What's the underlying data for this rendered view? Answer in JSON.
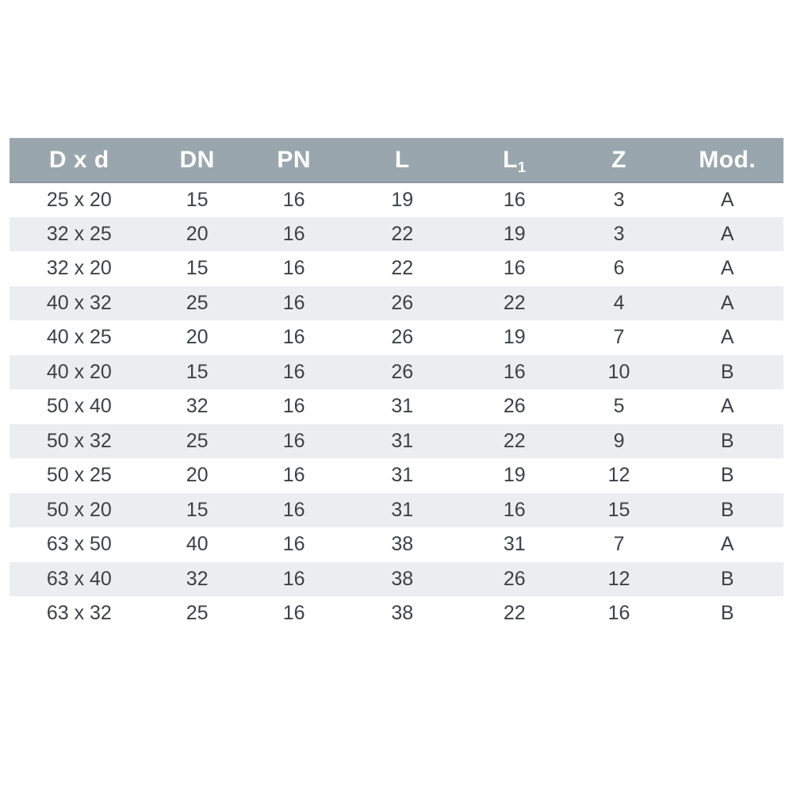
{
  "table": {
    "columns": [
      {
        "label": "D x d"
      },
      {
        "label": "DN"
      },
      {
        "label": "PN"
      },
      {
        "label": "L"
      },
      {
        "label": "L",
        "sub": "1"
      },
      {
        "label": "Z"
      },
      {
        "label": "Mod."
      }
    ],
    "rows": [
      [
        "25 x 20",
        "15",
        "16",
        "19",
        "16",
        "3",
        "A"
      ],
      [
        "32 x 25",
        "20",
        "16",
        "22",
        "19",
        "3",
        "A"
      ],
      [
        "32 x 20",
        "15",
        "16",
        "22",
        "16",
        "6",
        "A"
      ],
      [
        "40 x 32",
        "25",
        "16",
        "26",
        "22",
        "4",
        "A"
      ],
      [
        "40 x 25",
        "20",
        "16",
        "26",
        "19",
        "7",
        "A"
      ],
      [
        "40 x 20",
        "15",
        "16",
        "26",
        "16",
        "10",
        "B"
      ],
      [
        "50 x 40",
        "32",
        "16",
        "31",
        "26",
        "5",
        "A"
      ],
      [
        "50 x 32",
        "25",
        "16",
        "31",
        "22",
        "9",
        "B"
      ],
      [
        "50 x 25",
        "20",
        "16",
        "31",
        "19",
        "12",
        "B"
      ],
      [
        "50 x 20",
        "15",
        "16",
        "31",
        "16",
        "15",
        "B"
      ],
      [
        "63 x 50",
        "40",
        "16",
        "38",
        "31",
        "7",
        "A"
      ],
      [
        "63 x 40",
        "32",
        "16",
        "38",
        "26",
        "12",
        "B"
      ],
      [
        "63 x 32",
        "25",
        "16",
        "38",
        "22",
        "16",
        "B"
      ]
    ]
  },
  "colors": {
    "header_bg": "#9aa6ae",
    "header_text": "#ffffff",
    "row_alt_bg": "#eaeef1",
    "row_bg": "#ffffff",
    "cell_text": "#3d4145"
  },
  "chart_data": {
    "type": "table",
    "title": "",
    "columns": [
      "D x d",
      "DN",
      "PN",
      "L",
      "L1",
      "Z",
      "Mod."
    ],
    "rows": [
      [
        "25 x 20",
        15,
        16,
        19,
        16,
        3,
        "A"
      ],
      [
        "32 x 25",
        20,
        16,
        22,
        19,
        3,
        "A"
      ],
      [
        "32 x 20",
        15,
        16,
        22,
        16,
        6,
        "A"
      ],
      [
        "40 x 32",
        25,
        16,
        26,
        22,
        4,
        "A"
      ],
      [
        "40 x 25",
        20,
        16,
        26,
        19,
        7,
        "A"
      ],
      [
        "40 x 20",
        15,
        16,
        26,
        16,
        10,
        "B"
      ],
      [
        "50 x 40",
        32,
        16,
        31,
        26,
        5,
        "A"
      ],
      [
        "50 x 32",
        25,
        16,
        31,
        22,
        9,
        "B"
      ],
      [
        "50 x 25",
        20,
        16,
        31,
        19,
        12,
        "B"
      ],
      [
        "50 x 20",
        15,
        16,
        31,
        16,
        15,
        "B"
      ],
      [
        "63 x 50",
        40,
        16,
        38,
        31,
        7,
        "A"
      ],
      [
        "63 x 40",
        32,
        16,
        38,
        26,
        12,
        "B"
      ],
      [
        "63 x 32",
        25,
        16,
        38,
        22,
        16,
        "B"
      ]
    ]
  }
}
